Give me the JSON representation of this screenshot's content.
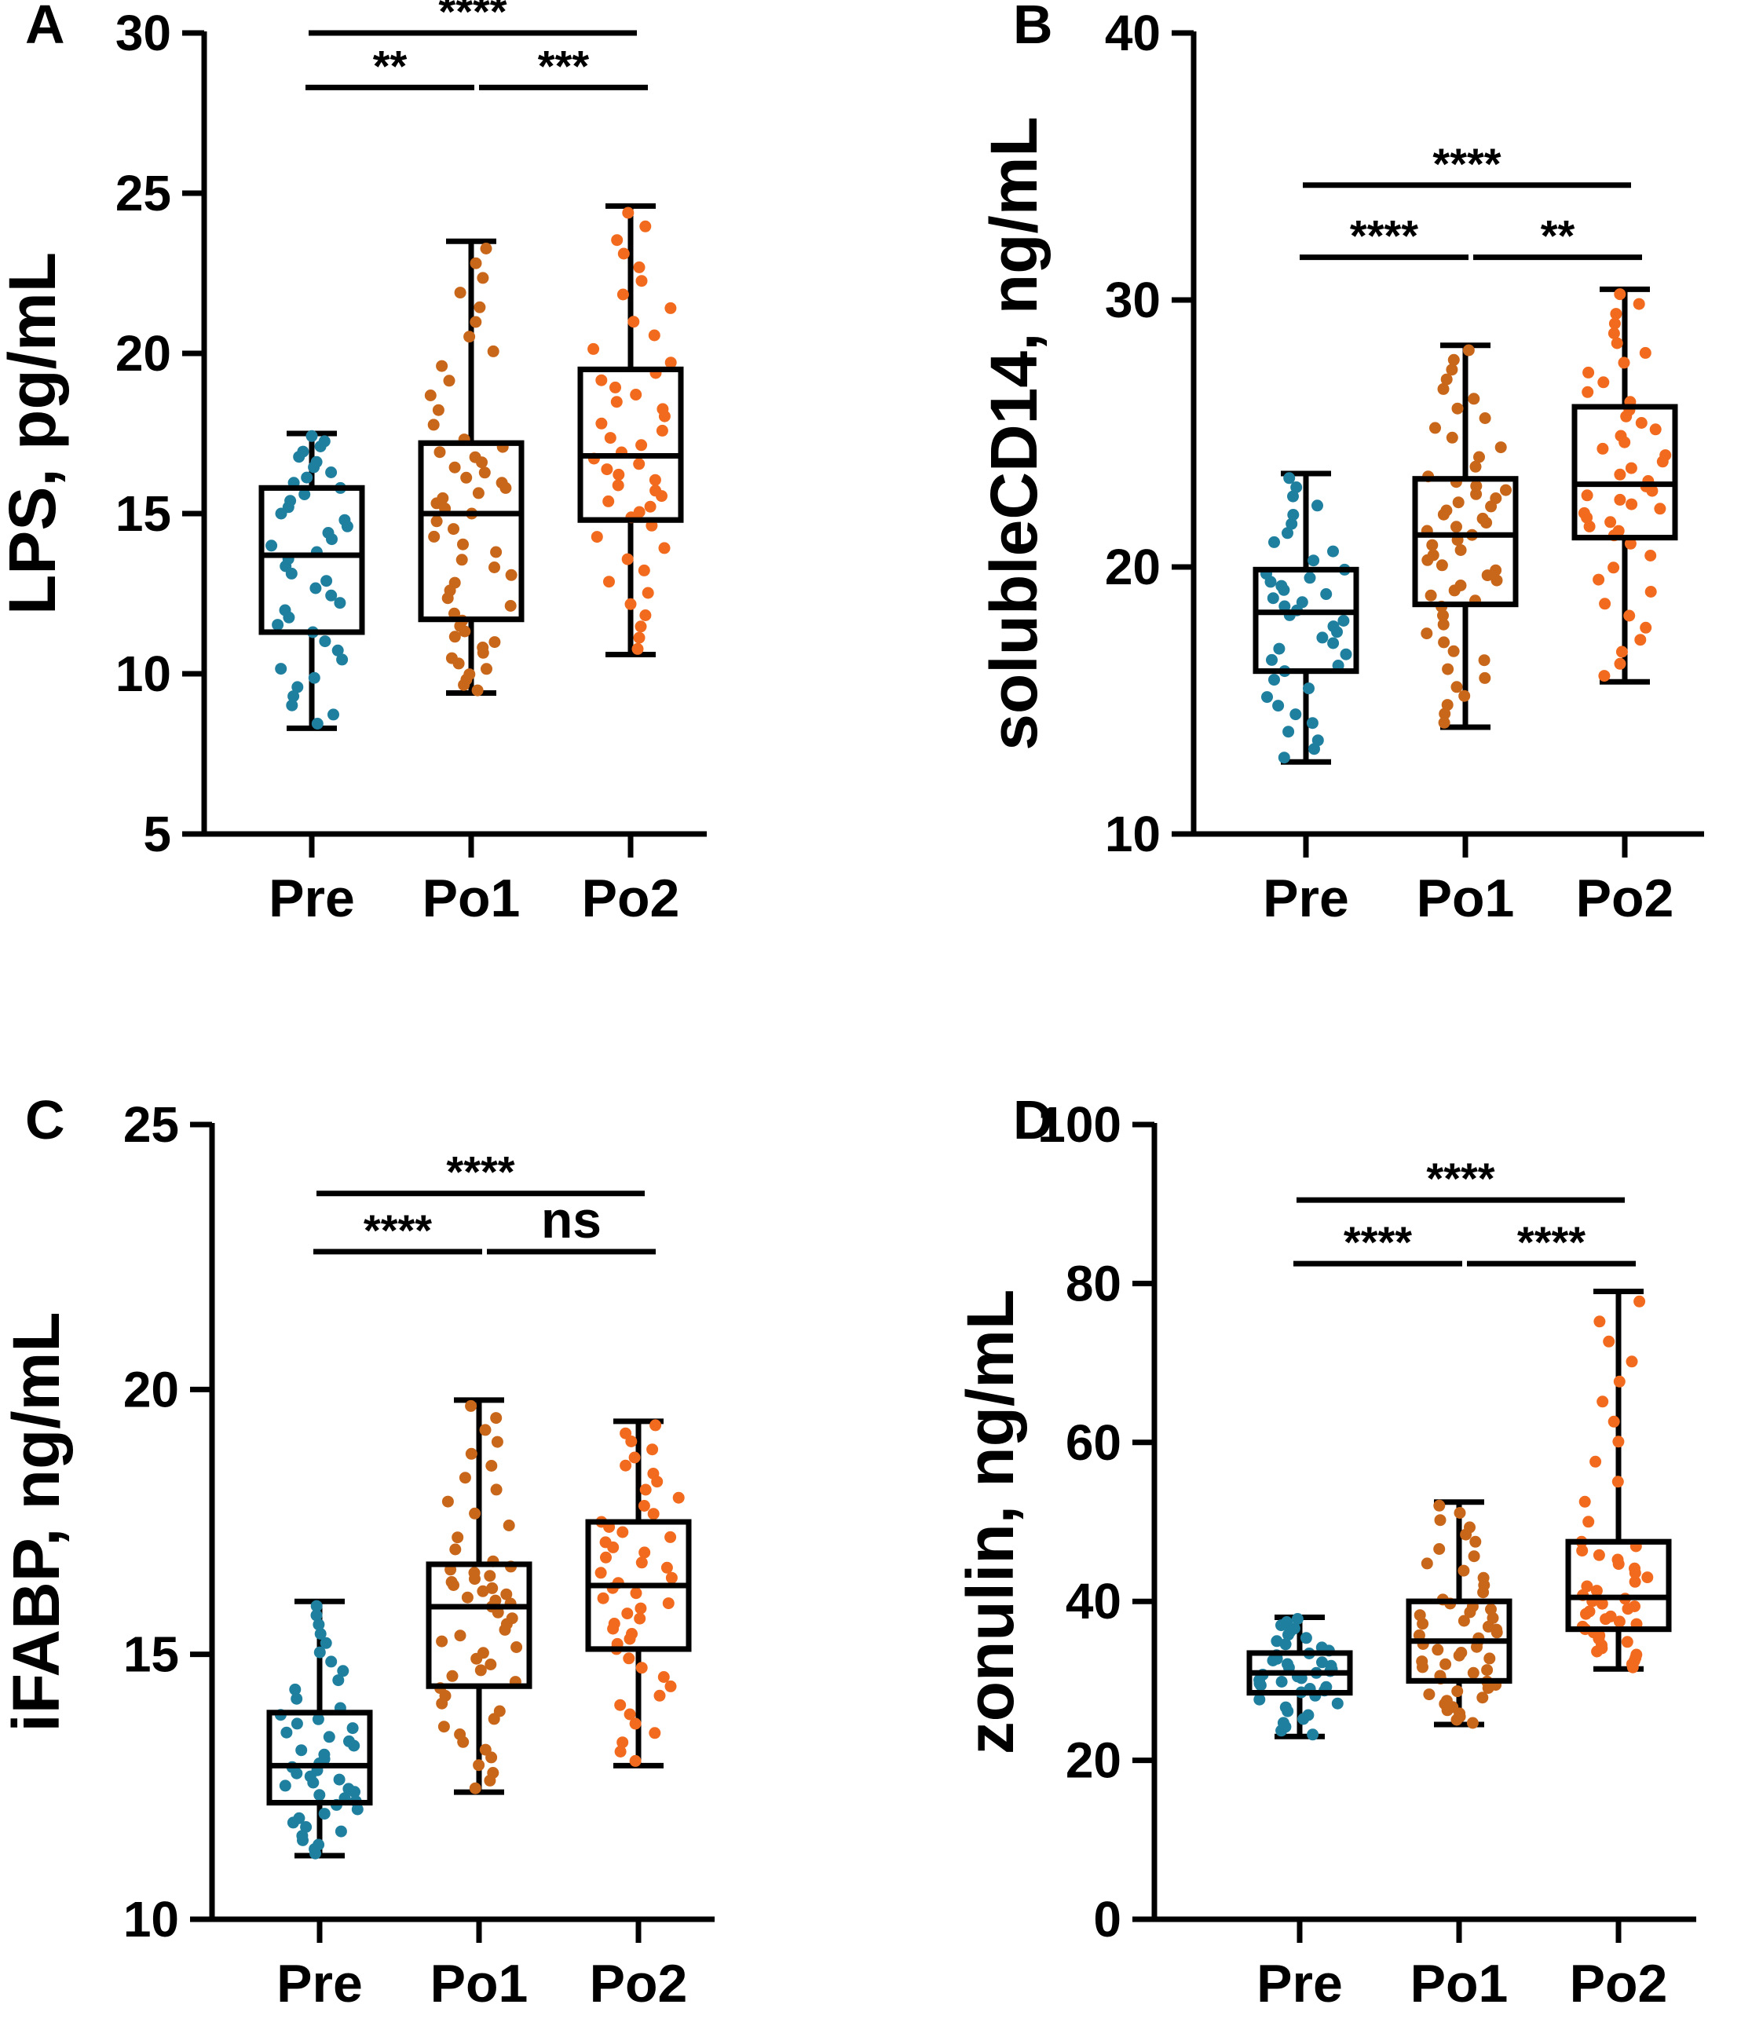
{
  "colors": {
    "Pre": "#1f7f9e",
    "Po1": "#c8661a",
    "Po2": "#f26a1e",
    "axis": "#000000"
  },
  "chart_data": [
    {
      "panel": "A",
      "type": "box",
      "ylabel": "LPS, pg/mL",
      "ylim": [
        5,
        30
      ],
      "yticks": [
        5,
        10,
        15,
        20,
        25,
        30
      ],
      "categories": [
        "Pre",
        "Po1",
        "Po2"
      ],
      "boxes": [
        {
          "group": "Pre",
          "min": 8.3,
          "q1": 11.3,
          "median": 13.7,
          "q3": 15.8,
          "max": 17.5,
          "n": 42
        },
        {
          "group": "Po1",
          "min": 9.4,
          "q1": 11.7,
          "median": 15.0,
          "q3": 17.2,
          "max": 23.5,
          "n": 55
        },
        {
          "group": "Po2",
          "min": 10.6,
          "q1": 14.8,
          "median": 16.8,
          "q3": 19.5,
          "max": 24.6,
          "n": 48
        }
      ],
      "comparisons": [
        {
          "from": "Pre",
          "to": "Po2",
          "label": "****",
          "y": 30.0
        },
        {
          "from": "Pre",
          "to": "Po1",
          "label": "**",
          "y": 28.3
        },
        {
          "from": "Po1",
          "to": "Po2",
          "label": "***",
          "y": 28.3
        }
      ]
    },
    {
      "panel": "B",
      "type": "box",
      "ylabel": "solubleCD14, ng/mL",
      "ylim": [
        10,
        40
      ],
      "yticks": [
        10,
        20,
        30,
        40
      ],
      "categories": [
        "Pre",
        "Po1",
        "Po2"
      ],
      "boxes": [
        {
          "group": "Pre",
          "min": 12.7,
          "q1": 16.1,
          "median": 18.3,
          "q3": 19.9,
          "max": 23.5,
          "n": 42
        },
        {
          "group": "Po1",
          "min": 14.0,
          "q1": 18.6,
          "median": 21.2,
          "q3": 23.3,
          "max": 28.3,
          "n": 55
        },
        {
          "group": "Po2",
          "min": 15.7,
          "q1": 21.1,
          "median": 23.1,
          "q3": 26.0,
          "max": 30.4,
          "n": 48
        }
      ],
      "comparisons": [
        {
          "from": "Pre",
          "to": "Po2",
          "label": "****",
          "y": 34.3
        },
        {
          "from": "Pre",
          "to": "Po1",
          "label": "****",
          "y": 31.6
        },
        {
          "from": "Po1",
          "to": "Po2",
          "label": "**",
          "y": 31.6
        }
      ]
    },
    {
      "panel": "C",
      "type": "box",
      "ylabel": "iFABP, ng/mL",
      "ylim": [
        10,
        25
      ],
      "yticks": [
        10,
        15,
        20,
        25
      ],
      "categories": [
        "Pre",
        "Po1",
        "Po2"
      ],
      "boxes": [
        {
          "group": "Pre",
          "min": 11.2,
          "q1": 12.2,
          "median": 12.9,
          "q3": 13.9,
          "max": 16.0,
          "n": 48
        },
        {
          "group": "Po1",
          "min": 12.4,
          "q1": 14.4,
          "median": 15.9,
          "q3": 16.7,
          "max": 19.8,
          "n": 55
        },
        {
          "group": "Po2",
          "min": 12.9,
          "q1": 15.1,
          "median": 16.3,
          "q3": 17.5,
          "max": 19.4,
          "n": 50
        }
      ],
      "comparisons": [
        {
          "from": "Pre",
          "to": "Po2",
          "label": "****",
          "y": 23.7
        },
        {
          "from": "Pre",
          "to": "Po1",
          "label": "****",
          "y": 22.6
        },
        {
          "from": "Po1",
          "to": "Po2",
          "label": "ns",
          "y": 22.6
        }
      ]
    },
    {
      "panel": "D",
      "type": "box",
      "ylabel": "zonulin, ng/mL",
      "ylim": [
        0,
        100
      ],
      "yticks": [
        0,
        20,
        40,
        60,
        80,
        100
      ],
      "categories": [
        "Pre",
        "Po1",
        "Po2"
      ],
      "boxes": [
        {
          "group": "Pre",
          "min": 23.0,
          "q1": 28.5,
          "median": 31.0,
          "q3": 33.5,
          "max": 38.0,
          "n": 45
        },
        {
          "group": "Po1",
          "min": 24.5,
          "q1": 30.0,
          "median": 35.0,
          "q3": 40.0,
          "max": 52.5,
          "n": 55
        },
        {
          "group": "Po2",
          "min": 31.5,
          "q1": 36.5,
          "median": 40.5,
          "q3": 47.5,
          "max": 79.0,
          "n": 50
        }
      ],
      "comparisons": [
        {
          "from": "Pre",
          "to": "Po2",
          "label": "****",
          "y": 90.5
        },
        {
          "from": "Pre",
          "to": "Po1",
          "label": "****",
          "y": 82.5
        },
        {
          "from": "Po1",
          "to": "Po2",
          "label": "****",
          "y": 82.5
        }
      ]
    }
  ]
}
